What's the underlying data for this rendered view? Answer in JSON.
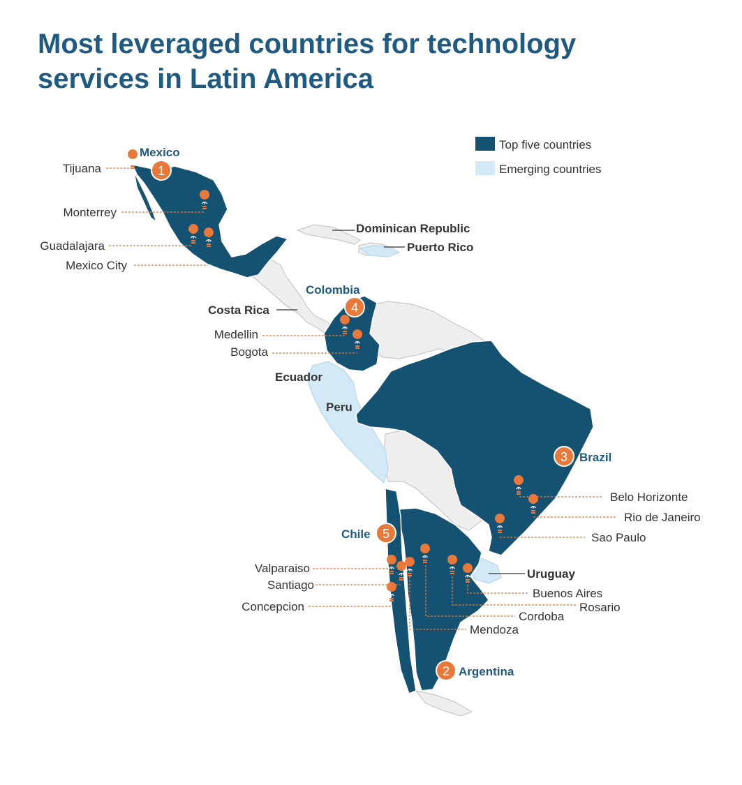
{
  "title": {
    "line1": "Most leveraged countries for technology",
    "line2": "services in Latin America"
  },
  "legend": {
    "top_label": "Top five countries",
    "top_color": "#155272",
    "emerging_label": "Emerging countries",
    "emerging_color": "#d3e9f6"
  },
  "colors": {
    "accent_orange": "#e8793a",
    "title_blue": "#1e5a82",
    "land_other": "#eeeeee"
  },
  "top_countries": [
    {
      "rank": "1",
      "name": "Mexico"
    },
    {
      "rank": "2",
      "name": "Argentina"
    },
    {
      "rank": "3",
      "name": "Brazil"
    },
    {
      "rank": "4",
      "name": "Colombia"
    },
    {
      "rank": "5",
      "name": "Chile"
    }
  ],
  "emerging_countries": [
    "Dominican Republic",
    "Puerto Rico",
    "Costa Rica",
    "Ecuador",
    "Peru",
    "Uruguay"
  ],
  "cities": {
    "mexico": [
      "Tijuana",
      "Monterrey",
      "Guadalajara",
      "Mexico City"
    ],
    "colombia": [
      "Medellin",
      "Bogota"
    ],
    "brazil": [
      "Belo Horizonte",
      "Rio de Janeiro",
      "Sao Paulo"
    ],
    "chile": [
      "Valparaiso",
      "Santiago",
      "Concepcion"
    ],
    "argentina": [
      "Buenos Aires",
      "Rosario",
      "Cordoba",
      "Mendoza"
    ]
  },
  "icon": "lightbulb-pin-icon"
}
